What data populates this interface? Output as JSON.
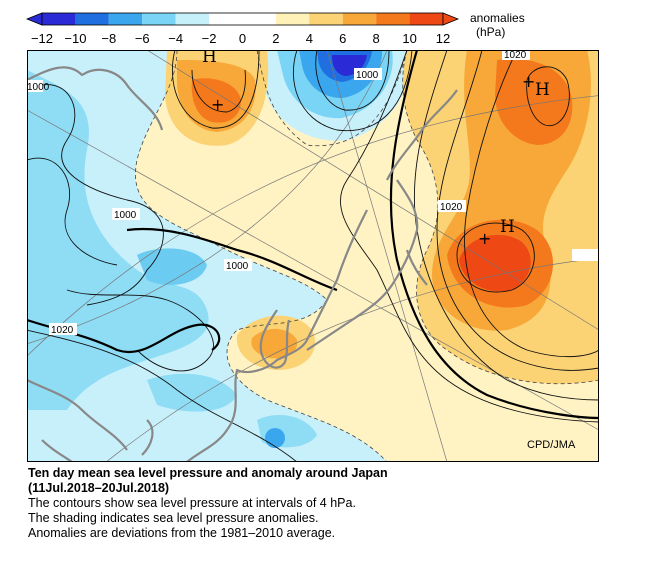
{
  "legend": {
    "title": "anomalies",
    "unit": "(hPa)",
    "ticks": [
      "−12",
      "−10",
      "−8",
      "−6",
      "−4",
      "−2",
      "0",
      "2",
      "4",
      "6",
      "8",
      "10",
      "12"
    ],
    "colors": [
      "#2a2ad6",
      "#1f6fe0",
      "#3aa6ee",
      "#79d4f5",
      "#c6f1fb",
      "#ffffff",
      "#ffffff",
      "#fff1b8",
      "#fbd374",
      "#f7a838",
      "#f4791c",
      "#ee4814"
    ]
  },
  "map": {
    "credit": "CPD/JMA",
    "isobar_labels": [
      "1000",
      "1000",
      "1000",
      "1000",
      "1020",
      "1020",
      "1020"
    ],
    "high_marker": "H",
    "high_count": 3
  },
  "caption": {
    "title_line1": "Ten day mean sea level pressure and anomaly around Japan",
    "title_line2": "(11Jul.2018–20Jul.2018)",
    "line1": "The contours show sea level pressure at intervals of 4 hPa.",
    "line2": "The shading indicates sea level pressure anomalies.",
    "line3": "Anomalies are deviations from the 1981–2010 average."
  }
}
